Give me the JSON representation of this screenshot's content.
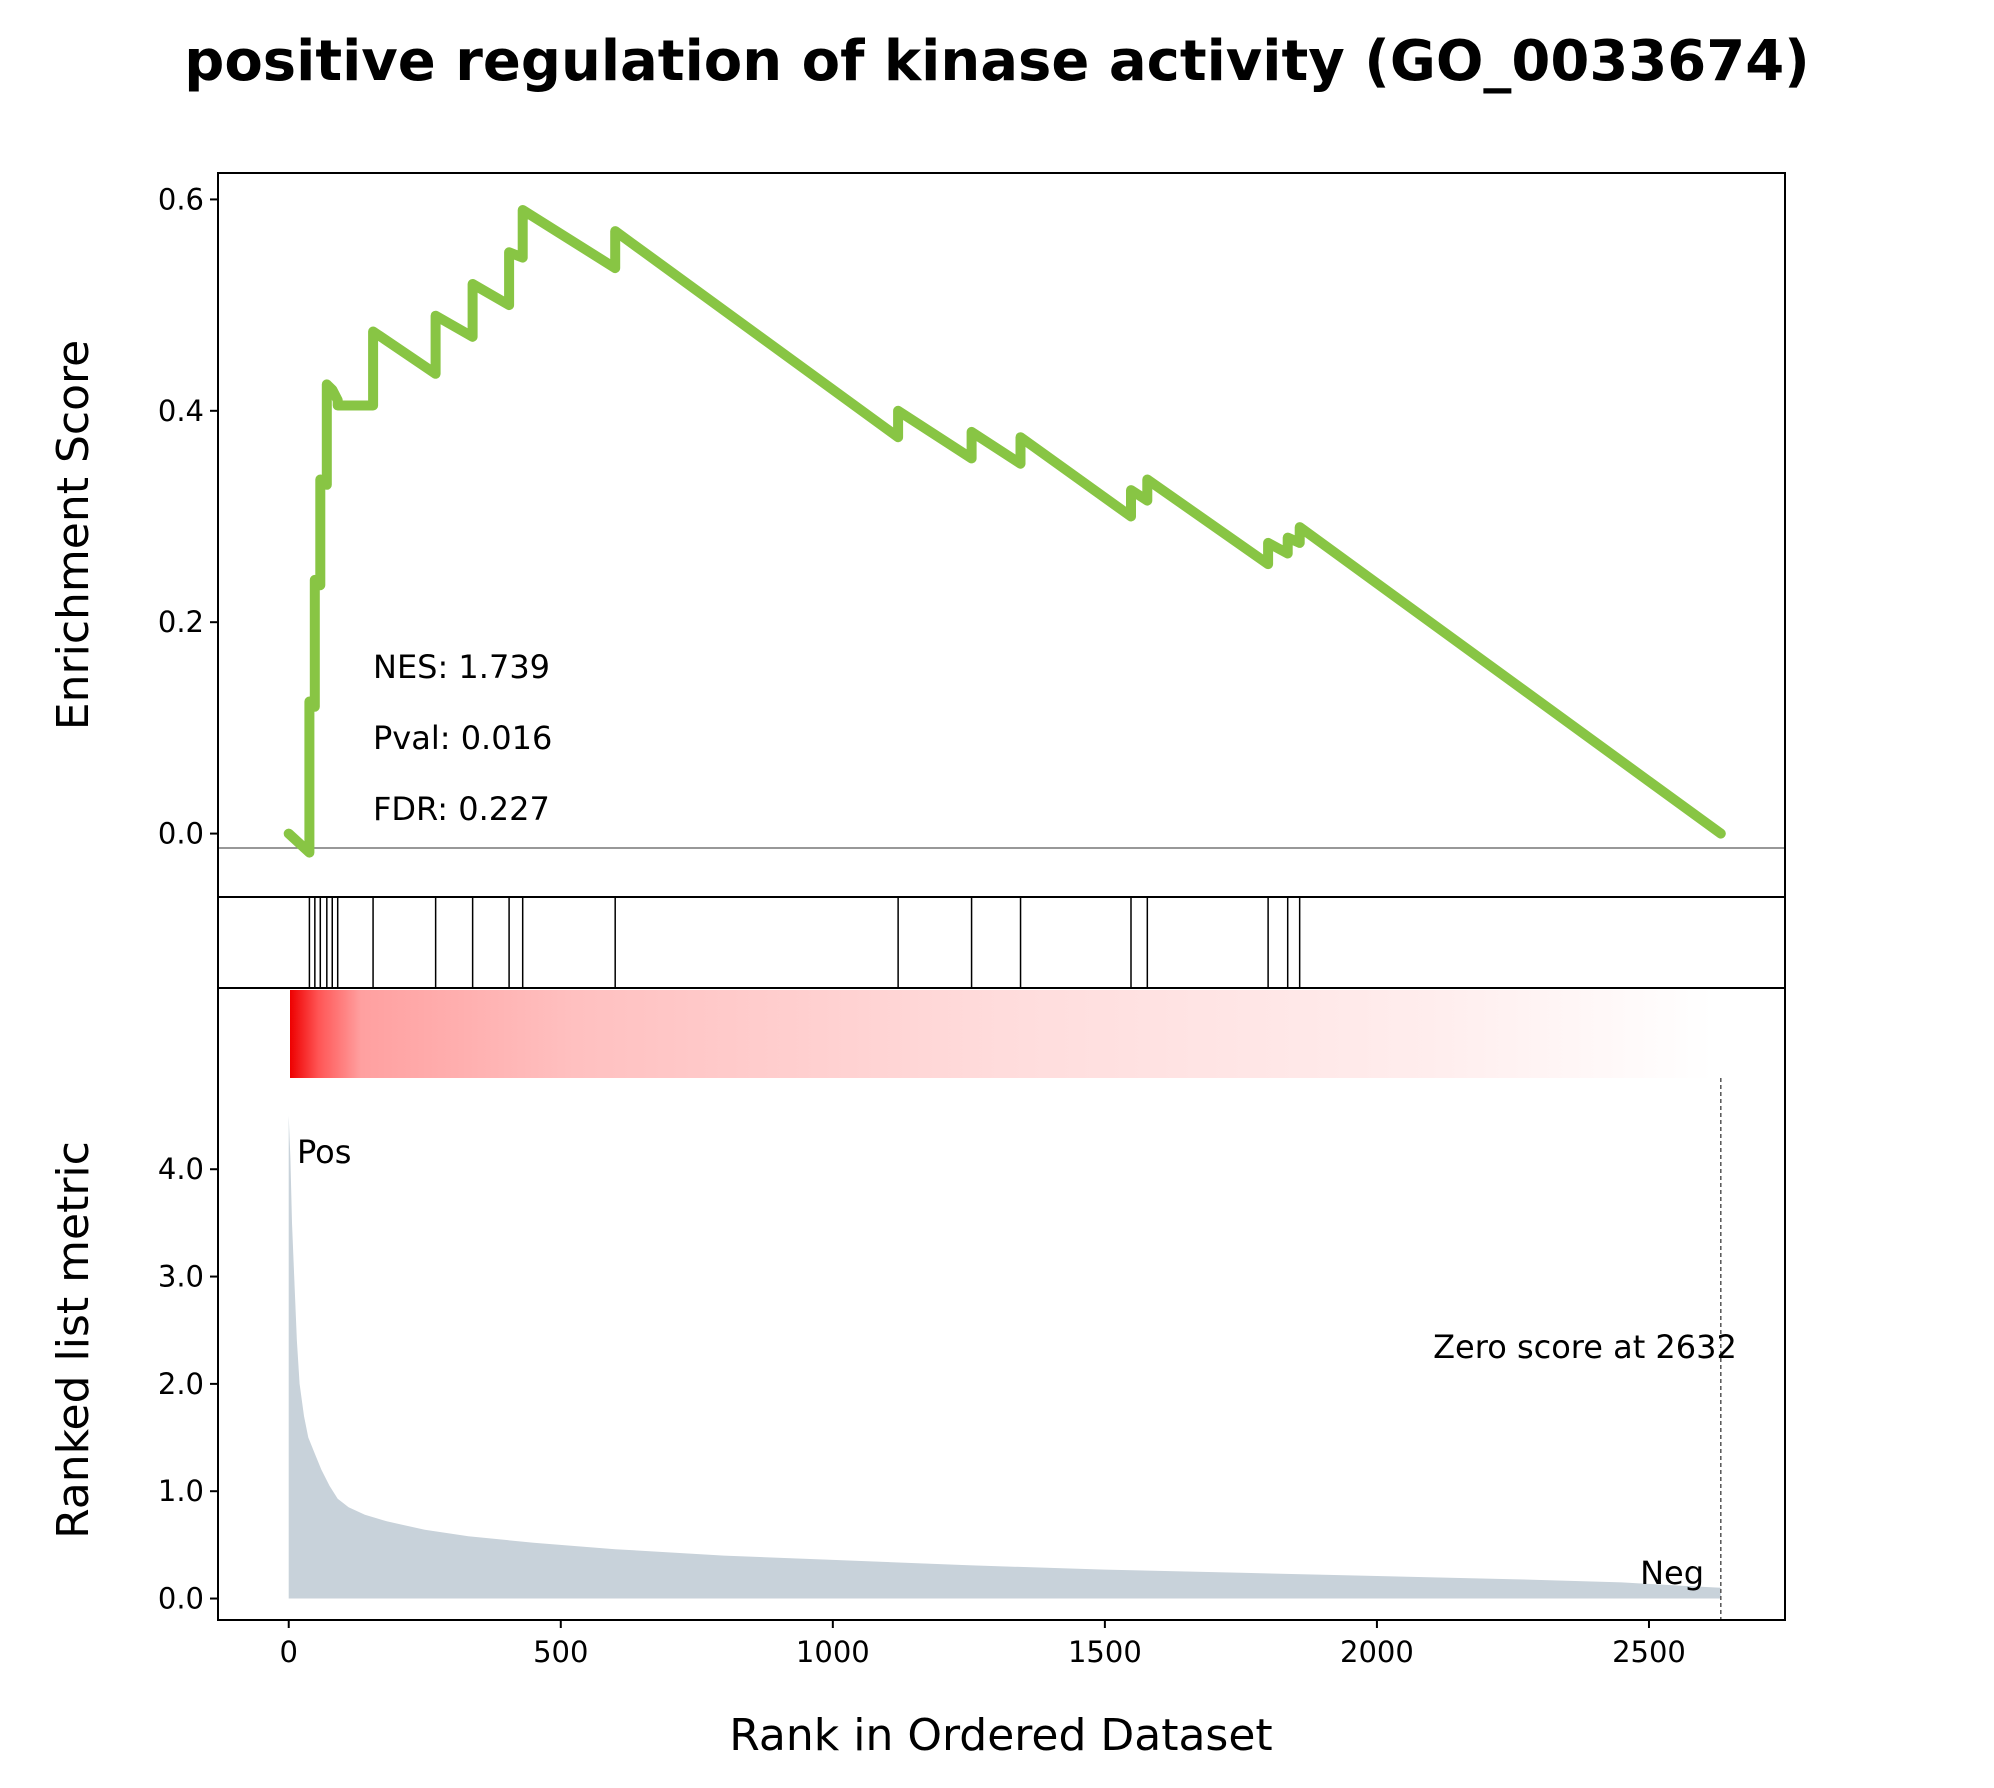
{
  "chart_data": {
    "type": "line",
    "title": "positive regulation of kinase activity (GO_0033674)",
    "xlabel": "Rank in Ordered Dataset",
    "xlim": [
      -130,
      2750
    ],
    "x_ticks": [
      0,
      500,
      1000,
      1500,
      2000,
      2500
    ],
    "top_panel": {
      "ylabel": "Enrichment Score",
      "ylim": [
        -0.06,
        0.625
      ],
      "y_ticks": [
        0.0,
        0.2,
        0.4,
        0.6
      ],
      "line_color": "#88c544",
      "x": [
        0,
        38,
        38,
        48,
        48,
        58,
        58,
        70,
        70,
        80,
        80,
        90,
        90,
        155,
        155,
        270,
        270,
        338,
        338,
        405,
        405,
        430,
        430,
        600,
        600,
        1120,
        1120,
        1255,
        1255,
        1345,
        1345,
        1548,
        1548,
        1578,
        1578,
        1800,
        1800,
        1836,
        1836,
        1858,
        1858,
        2632
      ],
      "y": [
        0.0,
        -0.018,
        0.125,
        0.12,
        0.24,
        0.235,
        0.335,
        0.33,
        0.425,
        0.42,
        0.42,
        0.41,
        0.405,
        0.405,
        0.475,
        0.435,
        0.49,
        0.47,
        0.52,
        0.5,
        0.55,
        0.545,
        0.59,
        0.535,
        0.57,
        0.375,
        0.4,
        0.355,
        0.38,
        0.35,
        0.375,
        0.3,
        0.325,
        0.315,
        0.335,
        0.255,
        0.275,
        0.265,
        0.28,
        0.275,
        0.29,
        0.0
      ],
      "annotations": [
        "NES: 1.739",
        "Pval: 0.016",
        "FDR: 0.227"
      ]
    },
    "hits": [
      38,
      48,
      58,
      70,
      80,
      90,
      155,
      270,
      338,
      405,
      430,
      600,
      1120,
      1255,
      1345,
      1548,
      1578,
      1800,
      1836,
      1858
    ],
    "bottom_panel": {
      "ylabel": "Ranked list metric",
      "ylim": [
        -0.2,
        4.85
      ],
      "y_ticks": [
        "0.0",
        "1.0",
        "2.0",
        "3.0",
        "4.0"
      ],
      "fill_color": "#c8d2da",
      "metric": [
        [
          0,
          4.5
        ],
        [
          3,
          4.1
        ],
        [
          6,
          3.5
        ],
        [
          10,
          3.0
        ],
        [
          15,
          2.4
        ],
        [
          20,
          2.0
        ],
        [
          28,
          1.7
        ],
        [
          36,
          1.5
        ],
        [
          48,
          1.35
        ],
        [
          60,
          1.2
        ],
        [
          75,
          1.05
        ],
        [
          90,
          0.93
        ],
        [
          110,
          0.85
        ],
        [
          140,
          0.78
        ],
        [
          180,
          0.72
        ],
        [
          250,
          0.64
        ],
        [
          330,
          0.58
        ],
        [
          450,
          0.52
        ],
        [
          600,
          0.46
        ],
        [
          800,
          0.4
        ],
        [
          1000,
          0.36
        ],
        [
          1250,
          0.31
        ],
        [
          1500,
          0.27
        ],
        [
          1750,
          0.24
        ],
        [
          2000,
          0.21
        ],
        [
          2250,
          0.18
        ],
        [
          2450,
          0.15
        ],
        [
          2560,
          0.12
        ],
        [
          2632,
          0.1
        ]
      ],
      "pos_label": "Pos",
      "neg_label": "Neg",
      "zero_score_label": "Zero score at 2632",
      "zero_score_x": 2632,
      "pos_color": "#ff0000",
      "neg_color": "#0000ff"
    }
  }
}
